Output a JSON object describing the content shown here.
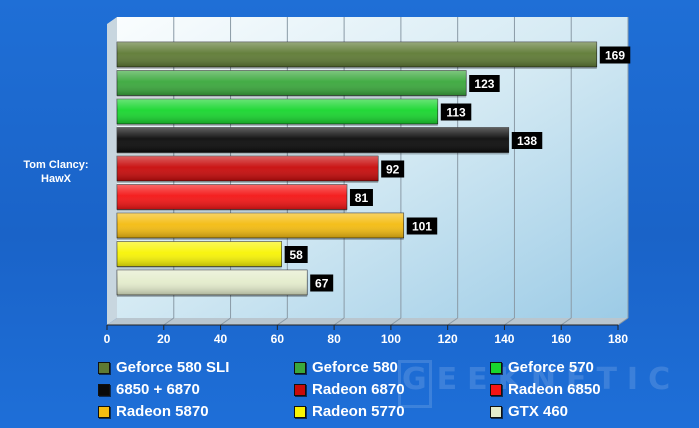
{
  "chart_data": {
    "type": "bar",
    "orientation": "horizontal",
    "categories": [
      "Tom Clancy:\nHawX"
    ],
    "category_label": [
      "Tom Clancy:",
      "HawX"
    ],
    "series": [
      {
        "name": "Geforce 580 SLI",
        "values": [
          169
        ],
        "color": "#5e7a34"
      },
      {
        "name": "Geforce 580",
        "values": [
          123
        ],
        "color": "#3aa83c"
      },
      {
        "name": "Geforce 570",
        "values": [
          113
        ],
        "color": "#18d62e"
      },
      {
        "name": "6850 + 6870",
        "values": [
          138
        ],
        "color": "#0a0a0a"
      },
      {
        "name": "Radeon 6870",
        "values": [
          92
        ],
        "color": "#c80a0a"
      },
      {
        "name": "Radeon 6850",
        "values": [
          81
        ],
        "color": "#f41414"
      },
      {
        "name": "Radeon 5870",
        "values": [
          101
        ],
        "color": "#f4bc10"
      },
      {
        "name": "Radeon 5770",
        "values": [
          58
        ],
        "color": "#f8f404"
      },
      {
        "name": "GTX 460",
        "values": [
          67
        ],
        "color": "#e4eccc"
      }
    ],
    "xlim": [
      0,
      180
    ],
    "x_ticks": [
      "0",
      "20",
      "40",
      "60",
      "80",
      "100",
      "120",
      "140",
      "160",
      "180"
    ],
    "grid": true,
    "legend_position": "bottom",
    "title": "",
    "xlabel": "",
    "ylabel": ""
  },
  "watermark": "GEEKNETIC"
}
